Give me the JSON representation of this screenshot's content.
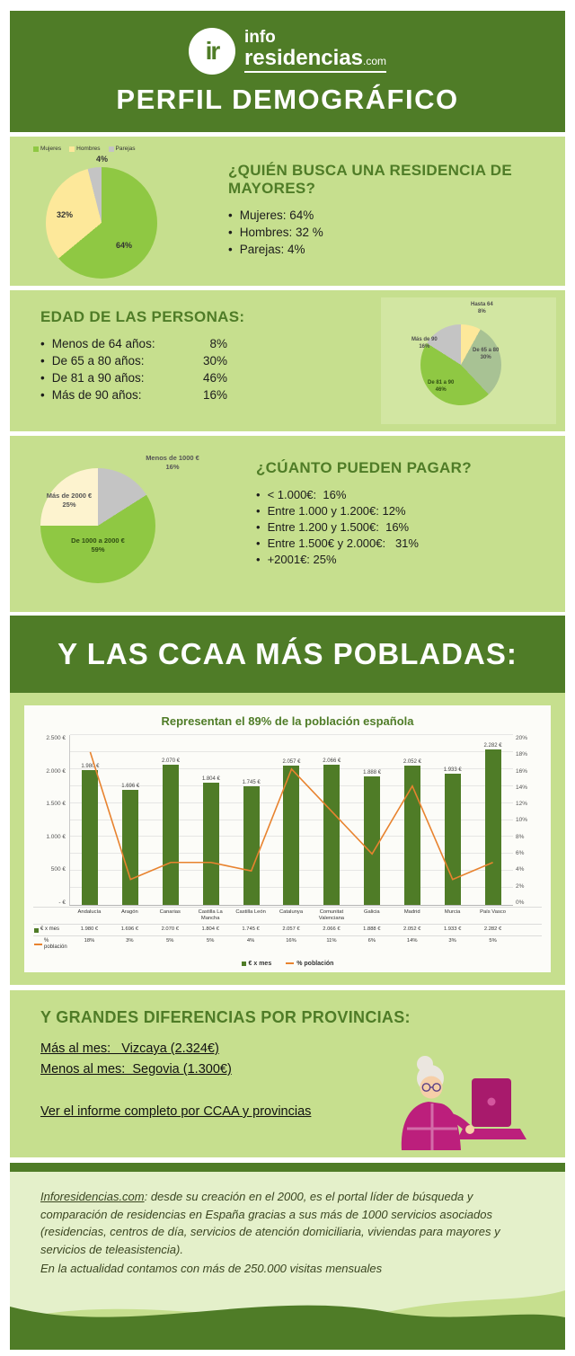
{
  "colors": {
    "dark_green": "#4f7c27",
    "light_green": "#c6df8e",
    "panel_green": "#d2e6a2",
    "pale_green": "#e4f0ca",
    "pie_green": "#8fc843",
    "pie_yellow": "#fde89a",
    "pie_cream": "#fdf3cf",
    "pie_gray": "#c4c4c4",
    "pie_sage": "#a8c294",
    "line_orange": "#e8832f",
    "magenta": "#bc1f7c"
  },
  "header": {
    "logo_monogram": "ir",
    "logo_top": "info",
    "logo_main": "residencias",
    "logo_suffix": ".com",
    "title": "PERFIL DEMOGRÁFICO"
  },
  "who_section": {
    "title": "¿QUIÉN BUSCA UNA RESIDENCIA DE MAYORES?",
    "bullets": [
      "Mujeres: 64%",
      "Hombres: 32 %",
      "Parejas: 4%"
    ]
  },
  "age_section": {
    "title": "EDAD DE LAS PERSONAS:",
    "bullets": [
      {
        "label": "Menos de 64 años:",
        "value": "8%"
      },
      {
        "label": "De 65 a 80 años:",
        "value": "30%"
      },
      {
        "label": "De 81 a 90 años:",
        "value": "46%"
      },
      {
        "label": "Más de 90 años:",
        "value": "16%"
      }
    ]
  },
  "pay_section": {
    "title": "¿CÚANTO PUEDEN PAGAR?",
    "bullets": [
      "< 1.000€:  16%",
      "Entre 1.000 y 1.200€: 12%",
      "Entre 1.200 y 1.500€:  16%",
      "Entre 1.500€ y 2.000€:   31%",
      "+2001€: 25%"
    ]
  },
  "ccaa_band": {
    "title": "Y LAS CCAA MÁS POBLADAS:"
  },
  "chart_data": [
    {
      "type": "pie",
      "name": "quien-busca",
      "categories": [
        "Mujeres",
        "Hombres",
        "Parejas"
      ],
      "values": [
        64,
        32,
        4
      ],
      "colors": [
        "#8fc843",
        "#fde89a",
        "#c4c4c4"
      ],
      "pct_labels": [
        "64%",
        "32%",
        "4%"
      ],
      "legend_position": "top"
    },
    {
      "type": "pie",
      "name": "edad",
      "categories": [
        "Hasta 64",
        "De 65 a 80",
        "De 81 a 90",
        "Más de 90"
      ],
      "values": [
        8,
        30,
        46,
        16
      ],
      "colors": [
        "#fde89a",
        "#a8c294",
        "#8fc843",
        "#c4c4c4"
      ],
      "pct_labels": [
        "8%",
        "30%",
        "46%",
        "16%"
      ]
    },
    {
      "type": "pie",
      "name": "cuanto-pagan",
      "categories": [
        "Menos de 1000 €",
        "De 1000 a 2000 €",
        "Más de 2000 €"
      ],
      "values": [
        16,
        59,
        25
      ],
      "colors": [
        "#c4c4c4",
        "#8fc843",
        "#fdf3cf"
      ],
      "pct_labels": [
        "16%",
        "59%",
        "25%"
      ]
    },
    {
      "type": "bar",
      "name": "ccaa-pobladas",
      "title": "Representan el 89% de la población española",
      "categories": [
        "Andalucía",
        "Aragón",
        "Canarias",
        "Castilla La Mancha",
        "Castilla León",
        "Catalunya",
        "Comunitat Valenciana",
        "Galicia",
        "Madrid",
        "Murcia",
        "País Vasco"
      ],
      "series": [
        {
          "name": "€ x mes",
          "type": "bar",
          "color": "#4f7c27",
          "values": [
            1980,
            1696,
            2070,
            1804,
            1745,
            2057,
            2066,
            1888,
            2052,
            1933,
            2282
          ],
          "labels": [
            "1.980 €",
            "1.696 €",
            "2.070 €",
            "1.804 €",
            "1.745 €",
            "2.057 €",
            "2.066 €",
            "1.888 €",
            "2.052 €",
            "1.933 €",
            "2.282 €"
          ]
        },
        {
          "name": "% población",
          "type": "line",
          "color": "#e8832f",
          "values": [
            18,
            3,
            5,
            5,
            4,
            16,
            11,
            6,
            14,
            3,
            5
          ],
          "labels": [
            "18%",
            "3%",
            "5%",
            "5%",
            "4%",
            "16%",
            "11%",
            "6%",
            "14%",
            "3%",
            "5%"
          ]
        }
      ],
      "y_left": {
        "min": 0,
        "max": 2500,
        "ticks": [
          "2.500 €",
          "2.000 €",
          "1.500 €",
          "1.000 €",
          "500 €",
          "- €"
        ]
      },
      "y_right": {
        "min": 0,
        "max": 20,
        "ticks": [
          "20%",
          "18%",
          "16%",
          "14%",
          "12%",
          "10%",
          "8%",
          "6%",
          "4%",
          "2%",
          "0%"
        ]
      },
      "grid": true,
      "legend_position": "bottom"
    }
  ],
  "provinces_section": {
    "title": "Y GRANDES DIFERENCIAS POR PROVINCIAS:",
    "max_line": "Más al mes:   Vizcaya (2.324€)",
    "min_line": "Menos al mes:  Segovia (1.300€)",
    "report_link": "Ver el informe completo por CCAA y provincias"
  },
  "footer": {
    "link": "Inforesidencias.com",
    "text": ": desde su creación en el 2000, es el portal líder de búsqueda y comparación de residencias en España gracias a sus más de 1000 servicios asociados (residencias, centros de día, servicios de atención domiciliaria, viviendas para mayores y servicios de teleasistencia).",
    "text2": "En la actualidad contamos con más de 250.000 visitas mensuales"
  }
}
